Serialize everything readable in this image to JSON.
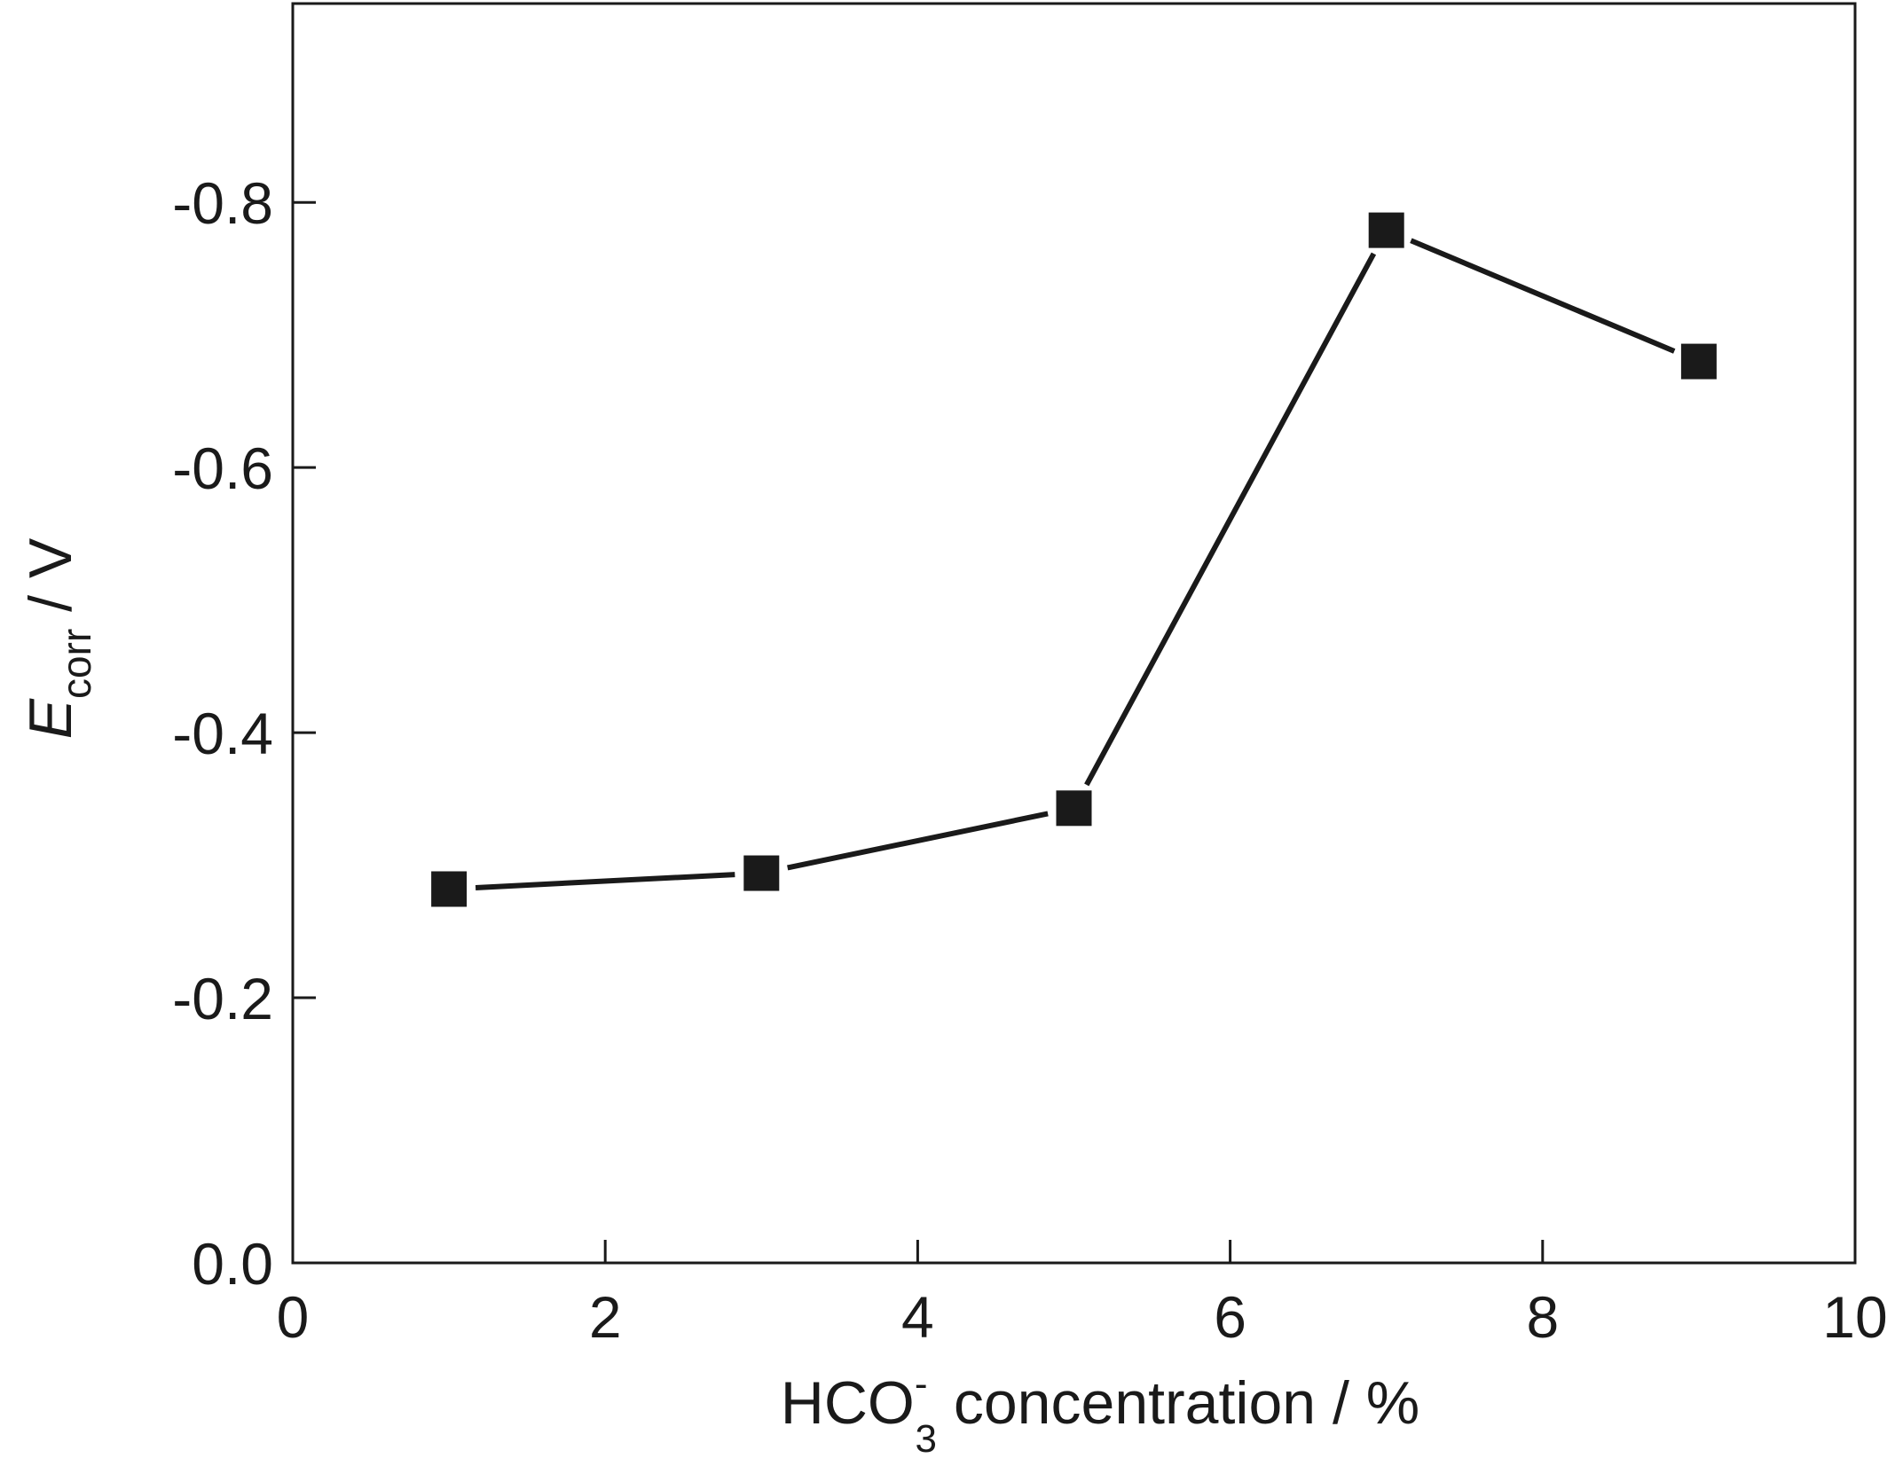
{
  "chart_data": {
    "type": "line",
    "title": "",
    "xlabel": {
      "main": "HCO",
      "sub": "3",
      "sup": "-",
      "rest": " concentration / %"
    },
    "ylabel": {
      "main": "E",
      "sub": "corr",
      "rest": " / V"
    },
    "xlim": [
      0,
      10
    ],
    "ylim": [
      0,
      -0.95
    ],
    "xticks": [
      0,
      2,
      4,
      6,
      8,
      10
    ],
    "xtick_labels": [
      "0",
      "2",
      "4",
      "6",
      "8",
      "10"
    ],
    "yticks": [
      0,
      -0.2,
      -0.4,
      -0.6,
      -0.8
    ],
    "ytick_labels": [
      "0.0",
      "-0.2",
      "-0.4",
      "-0.6",
      "-0.8"
    ],
    "grid": false,
    "series": [
      {
        "name": "Ecorr",
        "marker": "square",
        "color": "#1a1a1a",
        "x": [
          1,
          3,
          5,
          7,
          9
        ],
        "y": [
          -0.282,
          -0.294,
          -0.343,
          -0.779,
          -0.68
        ]
      }
    ]
  }
}
